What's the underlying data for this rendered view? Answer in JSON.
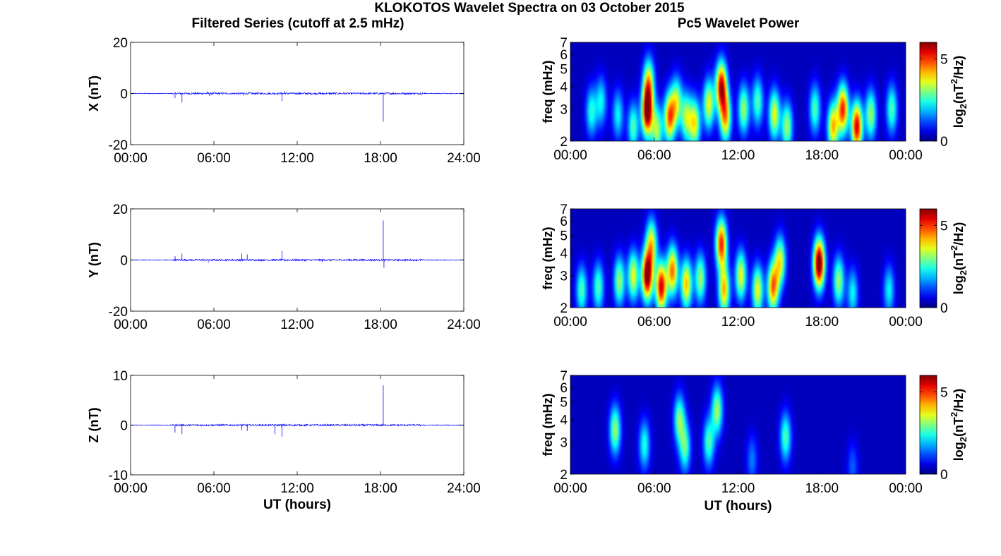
{
  "figure": {
    "title": "KLOKOTOS Wavelet Spectra on 03 October 2015",
    "left_title": "Filtered Series (cutoff at 2.5 mHz)",
    "right_title": "Pc5 Wavelet Power",
    "x_label": "UT (hours)",
    "colorbar_label_parts": [
      "log",
      "2",
      "(nT",
      "2",
      "/Hz)"
    ]
  },
  "chart_data": [
    {
      "type": "line",
      "ylabel": "X (nT)",
      "xlabel": "",
      "x_unit": "hours UT",
      "xlim": [
        0,
        24
      ],
      "ylim": [
        -20,
        20
      ],
      "x_ticks": [
        0,
        6,
        12,
        18,
        24
      ],
      "x_tick_labels": [
        "00:00",
        "06:00",
        "12:00",
        "18:00",
        "24:00"
      ],
      "y_ticks": [
        -20,
        0,
        20
      ],
      "y_tick_labels": [
        "-20",
        "0",
        "20"
      ],
      "line_color": "#0000ff",
      "spikes": [
        {
          "x": 3.2,
          "y": -1.8
        },
        {
          "x": 3.7,
          "y": -3.5
        },
        {
          "x": 5.5,
          "y": 0.8
        },
        {
          "x": 5.7,
          "y": -1.0
        },
        {
          "x": 8.1,
          "y": -0.8
        },
        {
          "x": 10.9,
          "y": -3.0
        },
        {
          "x": 11.1,
          "y": 0.9
        },
        {
          "x": 13.8,
          "y": -0.6
        },
        {
          "x": 18.2,
          "y": -11.0
        },
        {
          "x": 21.0,
          "y": 0.6
        },
        {
          "x": 21.2,
          "y": 0.5
        }
      ]
    },
    {
      "type": "line",
      "ylabel": "Y (nT)",
      "xlabel": "",
      "x_unit": "hours UT",
      "xlim": [
        0,
        24
      ],
      "ylim": [
        -20,
        20
      ],
      "x_ticks": [
        0,
        6,
        12,
        18,
        24
      ],
      "x_tick_labels": [
        "00:00",
        "06:00",
        "12:00",
        "18:00",
        "24:00"
      ],
      "y_ticks": [
        -20,
        0,
        20
      ],
      "y_tick_labels": [
        "-20",
        "0",
        "20"
      ],
      "line_color": "#0000ff",
      "spikes": [
        {
          "x": 3.2,
          "y": 1.5
        },
        {
          "x": 3.7,
          "y": 2.5
        },
        {
          "x": 5.6,
          "y": -1.0
        },
        {
          "x": 8.0,
          "y": 2.5
        },
        {
          "x": 8.4,
          "y": 2.2
        },
        {
          "x": 10.9,
          "y": 3.5
        },
        {
          "x": 13.8,
          "y": -0.8
        },
        {
          "x": 18.2,
          "y": 15.5
        },
        {
          "x": 18.25,
          "y": -3.0
        }
      ]
    },
    {
      "type": "line",
      "ylabel": "Z (nT)",
      "xlabel": "UT (hours)",
      "x_unit": "hours UT",
      "xlim": [
        0,
        24
      ],
      "ylim": [
        -10,
        10
      ],
      "x_ticks": [
        0,
        6,
        12,
        18,
        24
      ],
      "x_tick_labels": [
        "00:00",
        "06:00",
        "12:00",
        "18:00",
        "24:00"
      ],
      "y_ticks": [
        -10,
        0,
        10
      ],
      "y_tick_labels": [
        "-10",
        "0",
        "10"
      ],
      "line_color": "#0000ff",
      "spikes": [
        {
          "x": 3.2,
          "y": -1.5
        },
        {
          "x": 3.7,
          "y": -1.8
        },
        {
          "x": 8.0,
          "y": -1.0
        },
        {
          "x": 8.4,
          "y": -1.2
        },
        {
          "x": 10.4,
          "y": -1.8
        },
        {
          "x": 10.9,
          "y": -2.3
        },
        {
          "x": 18.2,
          "y": 8.0
        }
      ]
    },
    {
      "type": "heatmap",
      "ylabel": "freq (mHz)",
      "xlabel": "",
      "xlim": [
        0,
        24
      ],
      "ylim": [
        2,
        7
      ],
      "y_scale": "log",
      "x_ticks": [
        0,
        6,
        12,
        18,
        24
      ],
      "x_tick_labels": [
        "00:00",
        "06:00",
        "12:00",
        "18:00",
        "00:00"
      ],
      "y_ticks": [
        2,
        3,
        4,
        5,
        6,
        7
      ],
      "y_tick_labels": [
        "2",
        "3",
        "4",
        "5",
        "6",
        "7"
      ],
      "colormap": "jet",
      "clim": [
        0,
        6
      ],
      "colorbar_ticks": [
        0,
        5
      ],
      "blobs": [
        {
          "t": 1.5,
          "f": 2.9,
          "p": 2.2
        },
        {
          "t": 2.2,
          "f": 3.3,
          "p": 2.0
        },
        {
          "t": 3.4,
          "f": 2.8,
          "p": 2.0
        },
        {
          "t": 4.5,
          "f": 2.4,
          "p": 2.5
        },
        {
          "t": 5.5,
          "f": 2.9,
          "p": 6.0
        },
        {
          "t": 5.6,
          "f": 4.2,
          "p": 3.5
        },
        {
          "t": 6.2,
          "f": 2.3,
          "p": 3.0
        },
        {
          "t": 7.1,
          "f": 2.7,
          "p": 4.5
        },
        {
          "t": 7.6,
          "f": 3.3,
          "p": 3.0
        },
        {
          "t": 8.3,
          "f": 2.7,
          "p": 3.0
        },
        {
          "t": 8.9,
          "f": 2.5,
          "p": 3.5
        },
        {
          "t": 9.9,
          "f": 3.2,
          "p": 3.5
        },
        {
          "t": 10.8,
          "f": 4.0,
          "p": 5.5
        },
        {
          "t": 11.1,
          "f": 2.7,
          "p": 4.0
        },
        {
          "t": 12.4,
          "f": 3.0,
          "p": 3.0
        },
        {
          "t": 13.4,
          "f": 3.3,
          "p": 2.5
        },
        {
          "t": 14.6,
          "f": 2.8,
          "p": 3.5
        },
        {
          "t": 15.5,
          "f": 2.4,
          "p": 3.0
        },
        {
          "t": 17.5,
          "f": 3.0,
          "p": 2.5
        },
        {
          "t": 18.8,
          "f": 2.4,
          "p": 4.0
        },
        {
          "t": 19.5,
          "f": 3.0,
          "p": 5.0
        },
        {
          "t": 20.5,
          "f": 2.4,
          "p": 5.5
        },
        {
          "t": 21.5,
          "f": 2.8,
          "p": 3.0
        },
        {
          "t": 23.0,
          "f": 3.0,
          "p": 2.5
        }
      ]
    },
    {
      "type": "heatmap",
      "ylabel": "freq (mHz)",
      "xlabel": "",
      "xlim": [
        0,
        24
      ],
      "ylim": [
        2,
        7
      ],
      "y_scale": "log",
      "x_ticks": [
        0,
        6,
        12,
        18,
        24
      ],
      "x_tick_labels": [
        "00:00",
        "06:00",
        "12:00",
        "18:00",
        "00:00"
      ],
      "y_ticks": [
        2,
        3,
        4,
        5,
        6,
        7
      ],
      "y_tick_labels": [
        "2",
        "3",
        "4",
        "5",
        "6",
        "7"
      ],
      "colormap": "jet",
      "clim": [
        0,
        6
      ],
      "colorbar_ticks": [
        0,
        5
      ],
      "blobs": [
        {
          "t": 0.8,
          "f": 2.5,
          "p": 2.5
        },
        {
          "t": 2.0,
          "f": 2.6,
          "p": 2.5
        },
        {
          "t": 3.5,
          "f": 2.8,
          "p": 3.0
        },
        {
          "t": 4.5,
          "f": 3.0,
          "p": 3.5
        },
        {
          "t": 5.5,
          "f": 3.0,
          "p": 6.2
        },
        {
          "t": 5.8,
          "f": 4.5,
          "p": 3.5
        },
        {
          "t": 6.5,
          "f": 2.6,
          "p": 5.5
        },
        {
          "t": 7.3,
          "f": 3.2,
          "p": 4.5
        },
        {
          "t": 8.3,
          "f": 2.7,
          "p": 4.0
        },
        {
          "t": 9.3,
          "f": 2.9,
          "p": 3.0
        },
        {
          "t": 10.8,
          "f": 4.5,
          "p": 5.0
        },
        {
          "t": 11.0,
          "f": 2.5,
          "p": 4.0
        },
        {
          "t": 12.2,
          "f": 3.0,
          "p": 3.5
        },
        {
          "t": 13.4,
          "f": 2.5,
          "p": 3.5
        },
        {
          "t": 14.5,
          "f": 2.6,
          "p": 4.5
        },
        {
          "t": 15.0,
          "f": 3.6,
          "p": 3.5
        },
        {
          "t": 17.8,
          "f": 3.5,
          "p": 6.5
        },
        {
          "t": 19.2,
          "f": 2.8,
          "p": 3.0
        },
        {
          "t": 20.2,
          "f": 2.4,
          "p": 2.0
        },
        {
          "t": 22.8,
          "f": 2.5,
          "p": 2.0
        }
      ]
    },
    {
      "type": "heatmap",
      "ylabel": "freq (mHz)",
      "xlabel": "UT (hours)",
      "xlim": [
        0,
        24
      ],
      "ylim": [
        2,
        7
      ],
      "y_scale": "log",
      "x_ticks": [
        0,
        6,
        12,
        18,
        24
      ],
      "x_tick_labels": [
        "00:00",
        "06:00",
        "12:00",
        "18:00",
        "00:00"
      ],
      "y_ticks": [
        2,
        3,
        4,
        5,
        6,
        7
      ],
      "y_tick_labels": [
        "2",
        "3",
        "4",
        "5",
        "6",
        "7"
      ],
      "colormap": "jet",
      "clim": [
        0,
        6
      ],
      "colorbar_ticks": [
        0,
        5
      ],
      "blobs": [
        {
          "t": 3.2,
          "f": 3.5,
          "p": 3.0
        },
        {
          "t": 5.3,
          "f": 2.9,
          "p": 2.2
        },
        {
          "t": 7.8,
          "f": 4.0,
          "p": 2.8
        },
        {
          "t": 8.2,
          "f": 2.8,
          "p": 2.5
        },
        {
          "t": 9.9,
          "f": 3.0,
          "p": 2.5
        },
        {
          "t": 10.5,
          "f": 4.5,
          "p": 3.0
        },
        {
          "t": 15.4,
          "f": 3.2,
          "p": 2.5
        },
        {
          "t": 13.0,
          "f": 2.4,
          "p": 1.2
        },
        {
          "t": 20.2,
          "f": 2.2,
          "p": 1.0
        }
      ]
    }
  ]
}
